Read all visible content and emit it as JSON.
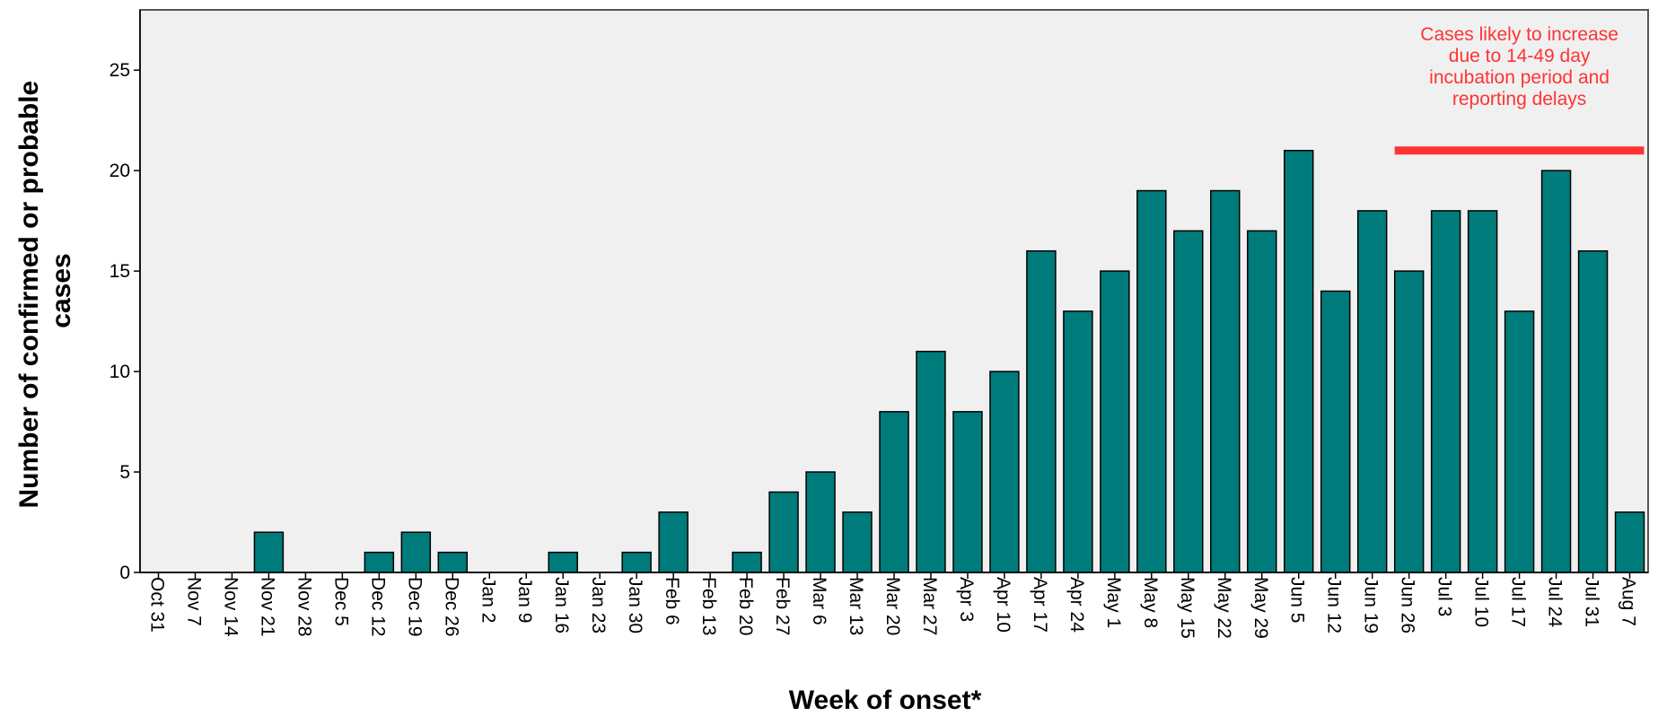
{
  "chart_data": {
    "type": "bar",
    "title": "",
    "xlabel": "Week of onset*",
    "ylabel": [
      "Number of confirmed or probable",
      "cases"
    ],
    "ylim": [
      0,
      28
    ],
    "yticks": [
      0,
      5,
      10,
      15,
      20,
      25
    ],
    "grid": false,
    "categories": [
      "Oct 31",
      "Nov 7",
      "Nov 14",
      "Nov 21",
      "Nov 28",
      "Dec 5",
      "Dec 12",
      "Dec 19",
      "Dec 26",
      "Jan 2",
      "Jan 9",
      "Jan 16",
      "Jan 23",
      "Jan 30",
      "Feb 6",
      "Feb 13",
      "Feb 20",
      "Feb 27",
      "Mar 6",
      "Mar 13",
      "Mar 20",
      "Mar 27",
      "Apr 3",
      "Apr 10",
      "Apr 17",
      "Apr 24",
      "May 1",
      "May 8",
      "May 15",
      "May 22",
      "May 29",
      "Jun 5",
      "Jun 12",
      "Jun 19",
      "Jun 26",
      "Jul 3",
      "Jul 10",
      "Jul 17",
      "Jul 24",
      "Jul 31",
      "Aug 7"
    ],
    "values": [
      0,
      0,
      0,
      2,
      0,
      0,
      1,
      2,
      1,
      0,
      0,
      1,
      0,
      1,
      3,
      0,
      1,
      4,
      5,
      3,
      8,
      11,
      8,
      10,
      16,
      13,
      15,
      19,
      17,
      19,
      17,
      21,
      14,
      18,
      15,
      18,
      18,
      13,
      20,
      16,
      3
    ],
    "annotation": {
      "lines": [
        "Cases likely to increase",
        "due to 14-49 day",
        "incubation period and",
        "reporting delays"
      ],
      "from_category": "Jun 26",
      "to_category": "Aug 7",
      "y": 21
    },
    "colors": {
      "bar": "#007b7b",
      "bar_stroke": "#000000",
      "plot_bg": "#f0f0f0",
      "annotation": "#ff3333"
    }
  }
}
